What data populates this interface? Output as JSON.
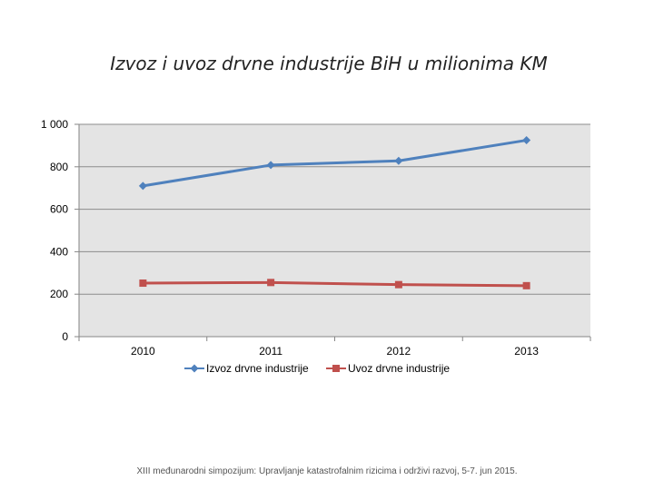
{
  "chart_data": {
    "type": "line",
    "title": "Izvoz i uvoz drvne industrije BiH u milionima KM",
    "categories": [
      "2010",
      "2011",
      "2012",
      "2013"
    ],
    "series": [
      {
        "name": "Izvoz drvne industrije",
        "values": [
          710,
          808,
          828,
          925
        ],
        "color": "#4f81bd",
        "marker": "diamond"
      },
      {
        "name": "Uvoz drvne industrije",
        "values": [
          252,
          255,
          245,
          240
        ],
        "color": "#c0504d",
        "marker": "square"
      }
    ],
    "ylim": [
      0,
      1000
    ],
    "yticks": [
      0,
      200,
      400,
      600,
      800,
      1000
    ],
    "ytick_labels": [
      "0",
      "200",
      "400",
      "600",
      "800",
      "1 000"
    ],
    "grid": true,
    "legend_position": "bottom",
    "xlabel": "",
    "ylabel": ""
  },
  "footer": "XIII međunarodni simpozijum: Upravljanje katastrofalnim rizicima i održivi razvoj, 5-7. jun 2015."
}
